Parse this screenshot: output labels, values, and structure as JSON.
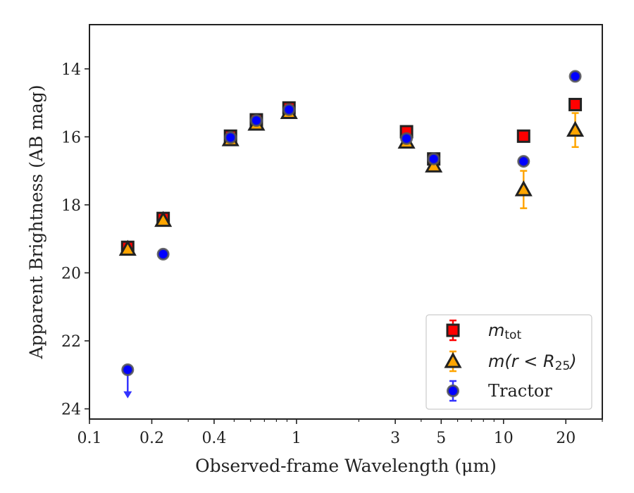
{
  "chart_data": {
    "type": "scatter",
    "xlabel": "Observed-frame Wavelength (μm)",
    "ylabel": "Apparent Brightness (AB mag)",
    "xscale": "log",
    "xlim": [
      0.1,
      30
    ],
    "ylim": [
      24.3,
      12.7
    ],
    "y_inverted": true,
    "x_ticks": [
      0.1,
      0.2,
      0.4,
      1,
      3,
      5,
      10,
      20
    ],
    "x_tick_labels": [
      "0.1",
      "0.2",
      "0.4",
      "1",
      "3",
      "5",
      "10",
      "20"
    ],
    "y_ticks": [
      14,
      16,
      18,
      20,
      22,
      24
    ],
    "y_tick_labels": [
      "14",
      "16",
      "18",
      "20",
      "22",
      "24"
    ],
    "grid": false,
    "legend_position": "lower-right",
    "series": [
      {
        "name": "m_tot",
        "label_main": "m",
        "label_sub": "tot",
        "marker": "square",
        "color": "#ff0000",
        "edge_color": "#222222",
        "error_color": "#ff0000",
        "x": [
          0.153,
          0.227,
          0.48,
          0.64,
          0.92,
          3.4,
          4.6,
          12.5,
          22.2
        ],
        "y": [
          19.25,
          18.4,
          15.98,
          15.5,
          15.15,
          15.85,
          16.65,
          15.98,
          15.05
        ],
        "err": [
          0.1,
          0.08,
          0.06,
          0.04,
          0.04,
          0.05,
          0.05,
          0.06,
          0.08
        ]
      },
      {
        "name": "m(r < R25)",
        "label_main": "m(r < R",
        "label_sub": "25",
        "label_end": ")",
        "marker": "triangle",
        "color": "#ffa500",
        "edge_color": "#222222",
        "error_color": "#ffa500",
        "x": [
          0.153,
          0.227,
          0.48,
          0.64,
          0.92,
          3.4,
          4.6,
          12.5,
          22.2
        ],
        "y": [
          19.3,
          18.45,
          16.08,
          15.62,
          15.28,
          16.15,
          16.85,
          17.55,
          15.8
        ],
        "err": [
          0.1,
          0.08,
          0.06,
          0.05,
          0.04,
          0.06,
          0.06,
          0.55,
          0.5
        ]
      },
      {
        "name": "Tractor",
        "label_main": "Tractor",
        "marker": "circle",
        "color": "#0000ff",
        "edge_color": "#555555",
        "error_color": "#3333ff",
        "x": [
          0.153,
          0.227,
          0.48,
          0.64,
          0.92,
          3.4,
          4.6,
          12.5,
          22.2
        ],
        "y": [
          22.85,
          19.45,
          16.02,
          15.52,
          15.2,
          16.05,
          16.65,
          16.72,
          14.22
        ],
        "err": [
          0,
          0,
          0.04,
          0.03,
          0.03,
          0.04,
          0.04,
          0.05,
          0.05
        ],
        "upper_limit_index": 0,
        "upper_limit_to": 23.65
      }
    ]
  }
}
